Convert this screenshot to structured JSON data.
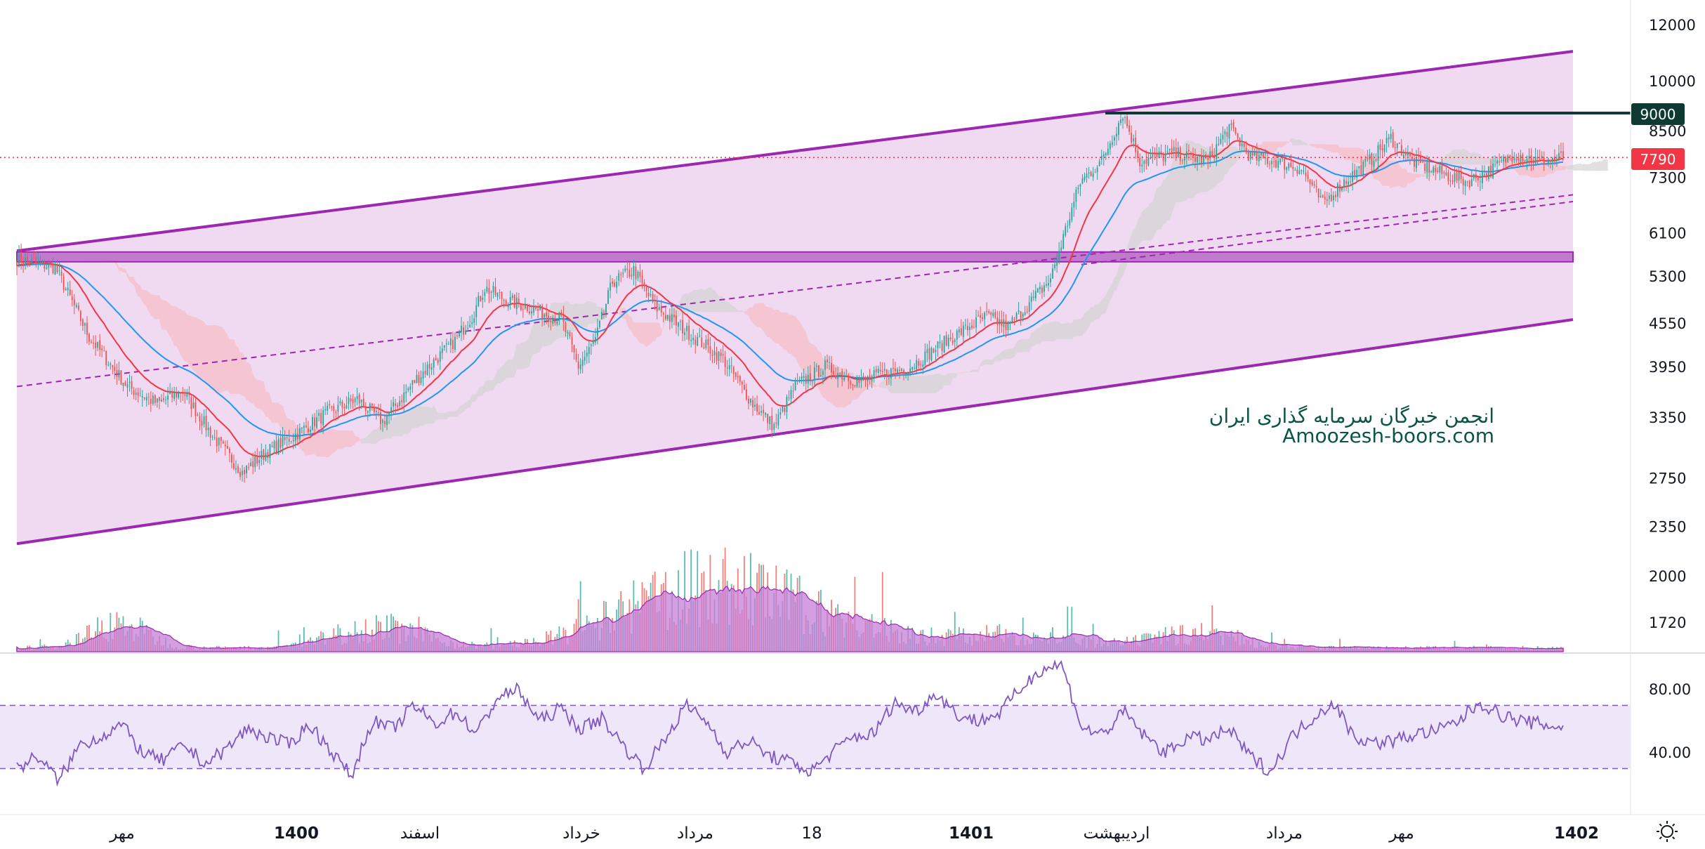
{
  "chart_data": {
    "type": "candlestick",
    "price_axis": {
      "scale": "log",
      "ticks": [
        12000,
        10000,
        8500,
        7300,
        6100,
        5300,
        4550,
        3950,
        3350,
        2750,
        2350,
        2000,
        1720
      ]
    },
    "time_axis": {
      "labels": [
        {
          "text": "مهر",
          "bold": false
        },
        {
          "text": "1400",
          "bold": true
        },
        {
          "text": "اسفند",
          "bold": false
        },
        {
          "text": "خرداد",
          "bold": false
        },
        {
          "text": "مرداد",
          "bold": false
        },
        {
          "text": "18",
          "bold": false
        },
        {
          "text": "1401",
          "bold": true
        },
        {
          "text": "اردیبهشت",
          "bold": false
        },
        {
          "text": "مرداد",
          "bold": false
        },
        {
          "text": "مهر",
          "bold": false
        },
        {
          "text": "1402",
          "bold": true
        }
      ]
    },
    "badges": {
      "resistance": "9000",
      "last_price": "7790"
    },
    "levels": {
      "resistance": 9000,
      "last_price": 7790,
      "support_zone": [
        5550,
        5730
      ]
    },
    "channel": {
      "upper_start": 5750,
      "upper_end": 11000,
      "lower_start": 2220,
      "lower_end": 4600,
      "mid_start": 3700,
      "mid_end": 6900
    },
    "price_path": [
      [
        0,
        5600
      ],
      [
        18,
        5450
      ],
      [
        34,
        4350
      ],
      [
        52,
        3700
      ],
      [
        66,
        3500
      ],
      [
        78,
        3650
      ],
      [
        92,
        3150
      ],
      [
        106,
        2800
      ],
      [
        118,
        3000
      ],
      [
        130,
        3150
      ],
      [
        146,
        3400
      ],
      [
        160,
        3550
      ],
      [
        172,
        3300
      ],
      [
        188,
        3800
      ],
      [
        206,
        4300
      ],
      [
        214,
        4650
      ],
      [
        220,
        5100
      ],
      [
        230,
        4900
      ],
      [
        240,
        4800
      ],
      [
        256,
        4600
      ],
      [
        264,
        3950
      ],
      [
        272,
        4300
      ],
      [
        280,
        5200
      ],
      [
        290,
        5400
      ],
      [
        300,
        4800
      ],
      [
        316,
        4400
      ],
      [
        332,
        4050
      ],
      [
        346,
        3500
      ],
      [
        356,
        3250
      ],
      [
        366,
        3700
      ],
      [
        380,
        3950
      ],
      [
        396,
        3750
      ],
      [
        406,
        3850
      ],
      [
        420,
        3950
      ],
      [
        440,
        4350
      ],
      [
        456,
        4650
      ],
      [
        466,
        4500
      ],
      [
        476,
        4850
      ],
      [
        486,
        5250
      ],
      [
        494,
        6300
      ],
      [
        500,
        7200
      ],
      [
        510,
        7700
      ],
      [
        520,
        9000
      ],
      [
        528,
        7700
      ],
      [
        544,
        7900
      ],
      [
        560,
        7700
      ],
      [
        570,
        8600
      ],
      [
        580,
        7800
      ],
      [
        592,
        7700
      ],
      [
        604,
        7500
      ],
      [
        614,
        6700
      ],
      [
        624,
        7200
      ],
      [
        636,
        7700
      ],
      [
        646,
        8300
      ],
      [
        656,
        7700
      ],
      [
        670,
        7400
      ],
      [
        682,
        7200
      ],
      [
        694,
        7500
      ],
      [
        704,
        7900
      ],
      [
        716,
        7700
      ],
      [
        727,
        7790
      ]
    ],
    "rsi": {
      "ticks": [
        "80.00",
        "40.00"
      ],
      "upper": 70,
      "lower": 30,
      "values": [
        30,
        38,
        22,
        45,
        50,
        58,
        40,
        35,
        45,
        33,
        42,
        55,
        50,
        45,
        58,
        42,
        25,
        60,
        55,
        70,
        58,
        66,
        52,
        75,
        80,
        60,
        68,
        55,
        62,
        45,
        30,
        48,
        70,
        60,
        40,
        48,
        38,
        34,
        28,
        40,
        50,
        52,
        72,
        66,
        78,
        64,
        60,
        65,
        80,
        93,
        96,
        55,
        52,
        66,
        50,
        40,
        50,
        48,
        55,
        38,
        28,
        50,
        62,
        72,
        50,
        46,
        48,
        52,
        54,
        60,
        72,
        64,
        60,
        58,
        56
      ]
    },
    "watermark": {
      "line1": "انجمن خبرگان سرمایه گذاری ایران",
      "line2": "Amoozesh-boors.com"
    },
    "colors": {
      "channel": "#9c27b0",
      "channel_fill": "#eed6f0",
      "up": "#26a69a",
      "down": "#ef5350",
      "ma_fast": "#f23645",
      "ma_slow": "#2196f3",
      "cloud_bear": "#f7bcc5",
      "cloud_bull": "#d3d3d3",
      "resistance": "#0d3b33",
      "last_price": "#f23645",
      "volume_fill": "#c77dd6",
      "rsi_line": "#7e57c2",
      "rsi_band": "#efe6f9"
    }
  }
}
